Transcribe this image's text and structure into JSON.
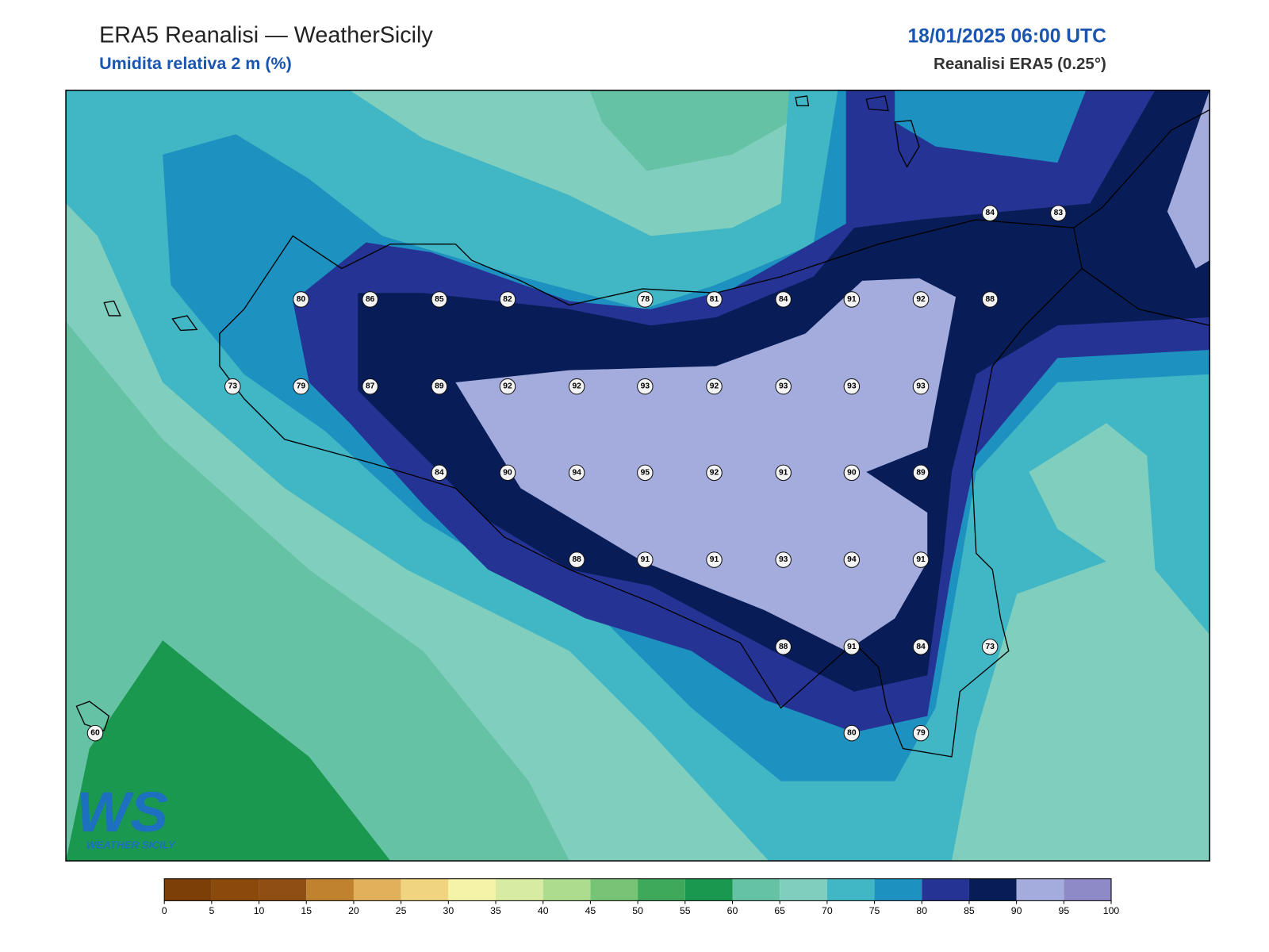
{
  "header": {
    "title": "ERA5 Reanalisi — WeatherSicily",
    "subtitle": "Umidita relativa 2 m (%)",
    "date": "18/01/2025 06:00 UTC",
    "source": "Reanalisi ERA5 (0.25°)"
  },
  "logo": {
    "mark": "WS",
    "text": "WEATHER SICILY"
  },
  "stations": [
    {
      "value": 84
    },
    {
      "value": 83
    },
    {
      "value": 80
    },
    {
      "value": 86
    },
    {
      "value": 85
    },
    {
      "value": 82
    },
    {
      "value": 78
    },
    {
      "value": 81
    },
    {
      "value": 84
    },
    {
      "value": 91
    },
    {
      "value": 92
    },
    {
      "value": 88
    },
    {
      "value": 73
    },
    {
      "value": 79
    },
    {
      "value": 87
    },
    {
      "value": 89
    },
    {
      "value": 92
    },
    {
      "value": 92
    },
    {
      "value": 93
    },
    {
      "value": 92
    },
    {
      "value": 93
    },
    {
      "value": 93
    },
    {
      "value": 93
    },
    {
      "value": 84
    },
    {
      "value": 90
    },
    {
      "value": 94
    },
    {
      "value": 95
    },
    {
      "value": 92
    },
    {
      "value": 91
    },
    {
      "value": 90
    },
    {
      "value": 89
    },
    {
      "value": 88
    },
    {
      "value": 91
    },
    {
      "value": 91
    },
    {
      "value": 93
    },
    {
      "value": 94
    },
    {
      "value": 91
    },
    {
      "value": 88
    },
    {
      "value": 91
    },
    {
      "value": 84
    },
    {
      "value": 73
    },
    {
      "value": 60
    },
    {
      "value": 80
    },
    {
      "value": 79
    }
  ],
  "colorbar": {
    "ticks": [
      0,
      5,
      10,
      15,
      20,
      25,
      30,
      35,
      40,
      45,
      50,
      55,
      60,
      65,
      70,
      75,
      80,
      85,
      90,
      95,
      100
    ],
    "colors": [
      "#7b3f07",
      "#8b4a0c",
      "#8f4f12",
      "#c0822e",
      "#e0b05a",
      "#f0d47f",
      "#f5f3a8",
      "#d8eba2",
      "#aedc8e",
      "#78c476",
      "#3fa95b",
      "#1a9850",
      "#66c2a4",
      "#80cfbe",
      "#41b6c4",
      "#1d91c0",
      "#253494",
      "#081d58",
      "#a3acdc",
      "#8e8ac8"
    ]
  }
}
